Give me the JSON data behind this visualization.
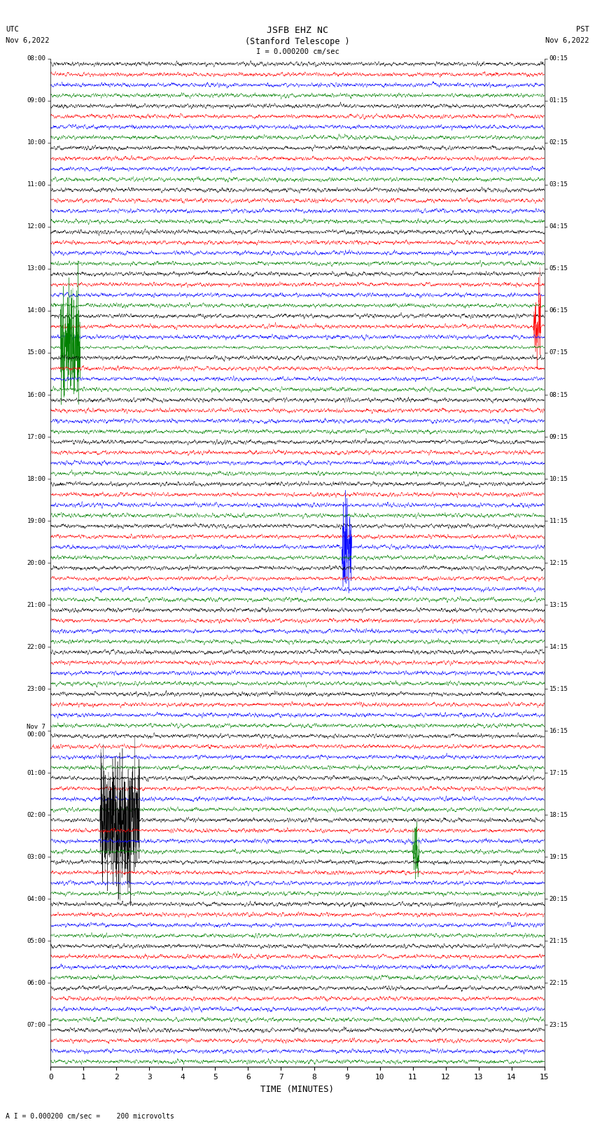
{
  "title_line1": "JSFB EHZ NC",
  "title_line2": "(Stanford Telescope )",
  "scale_label": "I = 0.000200 cm/sec",
  "bottom_label": "A I = 0.000200 cm/sec =    200 microvolts",
  "utc_label": "UTC",
  "utc_date": "Nov 6,2022",
  "pst_label": "PST",
  "pst_date": "Nov 6,2022",
  "xlabel": "TIME (MINUTES)",
  "left_times": [
    "08:00",
    "09:00",
    "10:00",
    "11:00",
    "12:00",
    "13:00",
    "14:00",
    "15:00",
    "16:00",
    "17:00",
    "18:00",
    "19:00",
    "20:00",
    "21:00",
    "22:00",
    "23:00",
    "Nov 7\n00:00",
    "01:00",
    "02:00",
    "03:00",
    "04:00",
    "05:00",
    "06:00",
    "07:00"
  ],
  "right_times": [
    "00:15",
    "01:15",
    "02:15",
    "03:15",
    "04:15",
    "05:15",
    "06:15",
    "07:15",
    "08:15",
    "09:15",
    "10:15",
    "11:15",
    "12:15",
    "13:15",
    "14:15",
    "15:15",
    "16:15",
    "17:15",
    "18:15",
    "19:15",
    "20:15",
    "21:15",
    "22:15",
    "23:15"
  ],
  "n_rows": 24,
  "n_traces_per_row": 4,
  "colors": [
    "black",
    "red",
    "blue",
    "green"
  ],
  "fig_width": 8.5,
  "fig_height": 16.13,
  "bg_color": "white",
  "xmin": 0,
  "xmax": 15,
  "xticks": [
    0,
    1,
    2,
    3,
    4,
    5,
    6,
    7,
    8,
    9,
    10,
    11,
    12,
    13,
    14,
    15
  ],
  "base_amplitude": 0.055,
  "n_points": 4000
}
